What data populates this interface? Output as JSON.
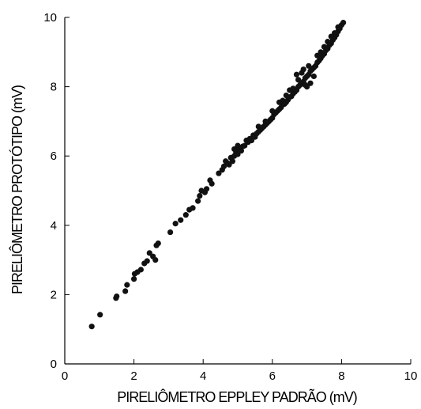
{
  "chart_data": {
    "type": "scatter",
    "xlabel": "PIRELIÔMETRO EPPLEY PADRÃO (mV)",
    "ylabel": "PIRELIÔMETRO PROTÓTIPO (mV)",
    "xlim": [
      0,
      10
    ],
    "ylim": [
      0,
      10
    ],
    "xticks": [
      "0",
      "2",
      "4",
      "6",
      "8",
      "10"
    ],
    "yticks": [
      "0",
      "2",
      "4",
      "6",
      "8",
      "10"
    ],
    "grid": false,
    "series": [
      {
        "marker_color": "#111111",
        "points": [
          [
            0.78,
            1.08
          ],
          [
            1.02,
            1.42
          ],
          [
            1.48,
            1.9
          ],
          [
            1.5,
            1.95
          ],
          [
            1.75,
            2.1
          ],
          [
            1.8,
            2.28
          ],
          [
            2.0,
            2.45
          ],
          [
            2.02,
            2.6
          ],
          [
            2.1,
            2.65
          ],
          [
            2.2,
            2.72
          ],
          [
            2.3,
            2.9
          ],
          [
            2.38,
            2.97
          ],
          [
            2.45,
            3.2
          ],
          [
            2.55,
            3.1
          ],
          [
            2.62,
            3.0
          ],
          [
            2.65,
            3.42
          ],
          [
            2.7,
            3.48
          ],
          [
            3.05,
            3.8
          ],
          [
            3.2,
            4.05
          ],
          [
            3.35,
            4.15
          ],
          [
            3.5,
            4.3
          ],
          [
            3.6,
            4.45
          ],
          [
            3.7,
            4.5
          ],
          [
            3.85,
            4.7
          ],
          [
            3.9,
            4.85
          ],
          [
            3.95,
            5.0
          ],
          [
            4.05,
            4.95
          ],
          [
            4.1,
            5.05
          ],
          [
            4.2,
            5.3
          ],
          [
            4.25,
            5.2
          ],
          [
            4.45,
            5.5
          ],
          [
            4.55,
            5.6
          ],
          [
            4.6,
            5.7
          ],
          [
            4.7,
            5.8
          ],
          [
            4.75,
            5.75
          ],
          [
            4.8,
            5.95
          ],
          [
            4.85,
            5.85
          ],
          [
            4.9,
            6.0
          ],
          [
            4.95,
            6.1
          ],
          [
            5.0,
            6.05
          ],
          [
            5.05,
            6.2
          ],
          [
            5.1,
            6.15
          ],
          [
            5.15,
            6.28
          ],
          [
            5.2,
            6.3
          ],
          [
            5.3,
            6.4
          ],
          [
            5.35,
            6.5
          ],
          [
            5.4,
            6.45
          ],
          [
            5.45,
            6.6
          ],
          [
            5.5,
            6.55
          ],
          [
            5.55,
            6.65
          ],
          [
            5.6,
            6.7
          ],
          [
            5.7,
            6.8
          ],
          [
            5.75,
            6.85
          ],
          [
            5.8,
            6.9
          ],
          [
            5.85,
            6.95
          ],
          [
            5.9,
            7.0
          ],
          [
            5.95,
            7.05
          ],
          [
            6.0,
            7.1
          ],
          [
            6.05,
            7.2
          ],
          [
            6.1,
            7.25
          ],
          [
            6.15,
            7.3
          ],
          [
            6.2,
            7.35
          ],
          [
            6.25,
            7.4
          ],
          [
            6.3,
            7.48
          ],
          [
            6.35,
            7.5
          ],
          [
            6.4,
            7.55
          ],
          [
            6.45,
            7.62
          ],
          [
            6.5,
            7.7
          ],
          [
            6.55,
            7.72
          ],
          [
            6.6,
            7.8
          ],
          [
            6.65,
            7.85
          ],
          [
            6.7,
            7.9
          ],
          [
            6.75,
            8.0
          ],
          [
            6.8,
            8.05
          ],
          [
            6.85,
            8.1
          ],
          [
            6.9,
            8.15
          ],
          [
            6.95,
            8.25
          ],
          [
            7.0,
            8.3
          ],
          [
            7.05,
            8.35
          ],
          [
            7.1,
            8.45
          ],
          [
            7.15,
            8.5
          ],
          [
            7.2,
            8.55
          ],
          [
            7.25,
            8.6
          ],
          [
            7.3,
            8.7
          ],
          [
            7.35,
            8.75
          ],
          [
            7.4,
            8.82
          ],
          [
            7.45,
            8.9
          ],
          [
            7.5,
            8.95
          ],
          [
            7.55,
            9.05
          ],
          [
            7.6,
            9.1
          ],
          [
            7.65,
            9.2
          ],
          [
            7.7,
            9.25
          ],
          [
            7.75,
            9.35
          ],
          [
            7.8,
            9.42
          ],
          [
            7.85,
            9.5
          ],
          [
            7.9,
            9.6
          ],
          [
            7.95,
            9.68
          ],
          [
            8.0,
            9.78
          ],
          [
            8.05,
            9.85
          ],
          [
            6.7,
            8.35
          ],
          [
            6.85,
            8.4
          ],
          [
            7.0,
            8.0
          ],
          [
            7.1,
            8.1
          ],
          [
            6.6,
            7.95
          ],
          [
            6.9,
            8.5
          ],
          [
            6.3,
            7.6
          ],
          [
            6.2,
            7.55
          ],
          [
            6.0,
            7.3
          ],
          [
            5.8,
            7.0
          ],
          [
            6.5,
            7.9
          ],
          [
            7.2,
            8.3
          ],
          [
            7.05,
            8.6
          ],
          [
            6.95,
            8.05
          ],
          [
            6.4,
            7.75
          ],
          [
            6.75,
            8.2
          ],
          [
            5.6,
            6.85
          ],
          [
            5.65,
            6.75
          ],
          [
            5.25,
            6.45
          ],
          [
            5.0,
            6.3
          ],
          [
            4.9,
            6.2
          ],
          [
            4.65,
            5.85
          ],
          [
            7.4,
            9.0
          ],
          [
            7.3,
            8.9
          ],
          [
            7.6,
            9.3
          ],
          [
            7.5,
            9.15
          ],
          [
            7.7,
            9.45
          ],
          [
            7.8,
            9.55
          ],
          [
            7.9,
            9.72
          ]
        ]
      }
    ]
  }
}
